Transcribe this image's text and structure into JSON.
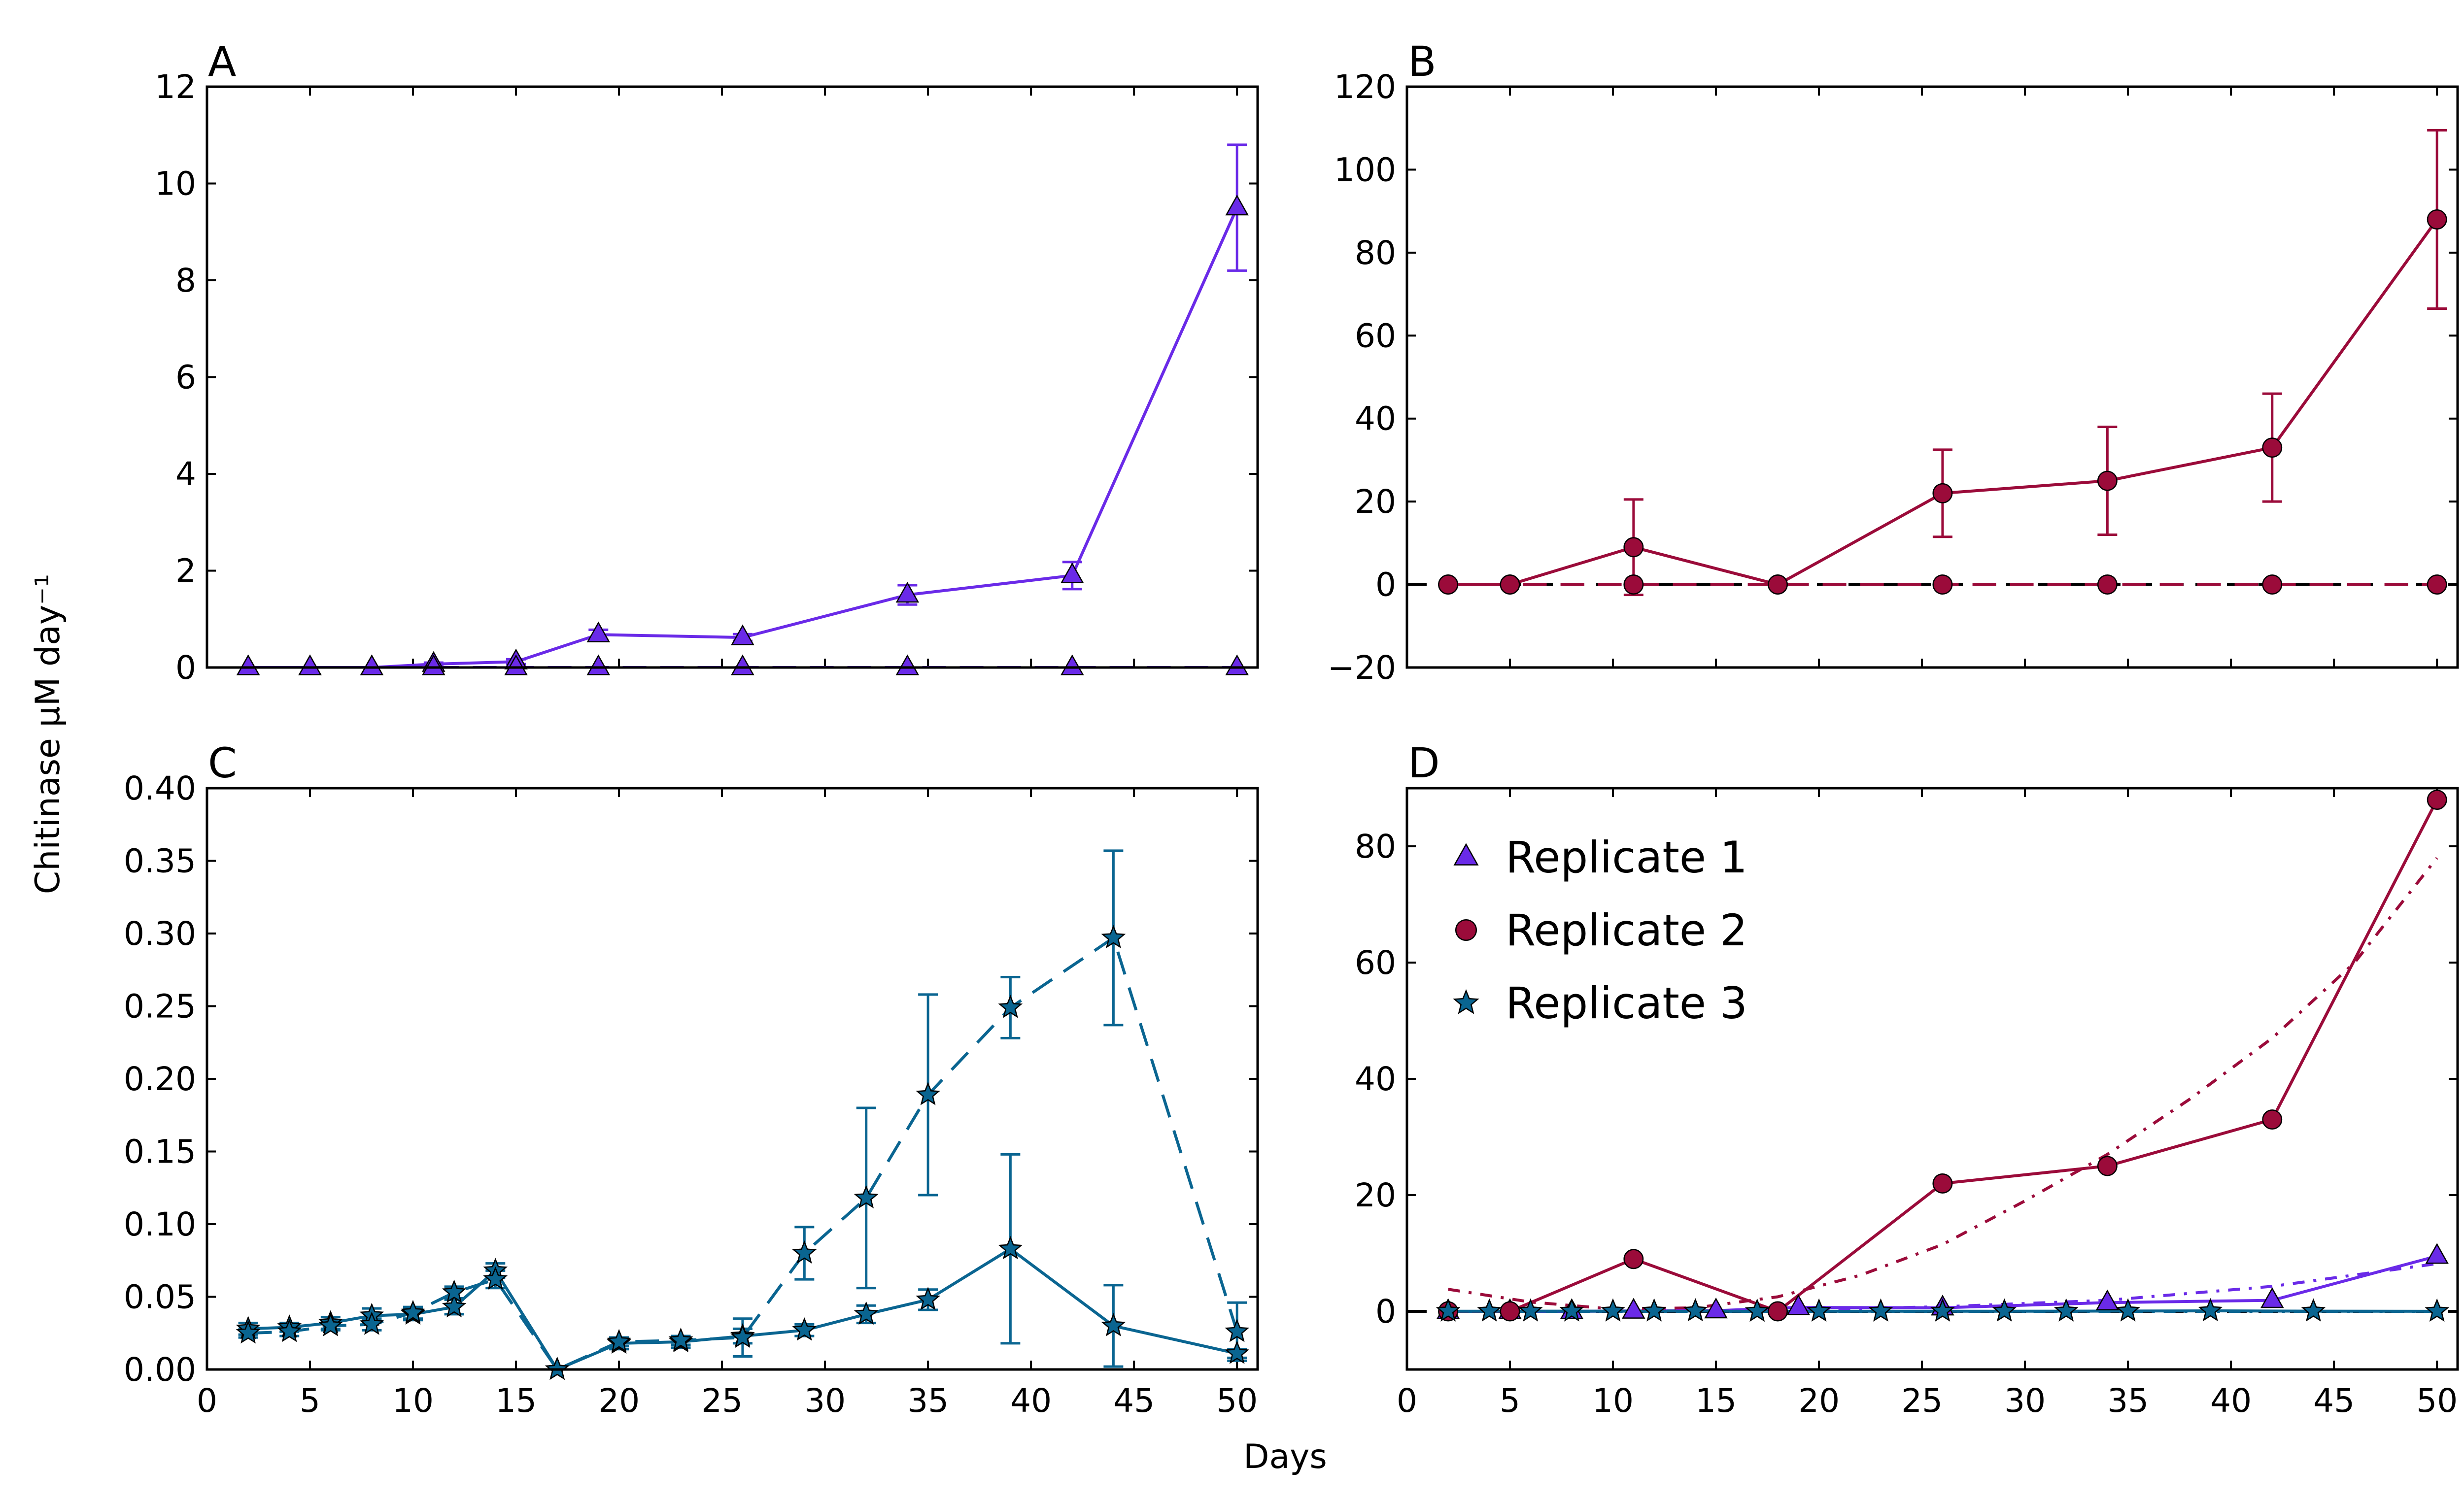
{
  "figure": {
    "xlabel": "Days",
    "ylabel": "Chitinase μM day⁻¹"
  },
  "colors": {
    "replicate_1": "#6a2ae8",
    "replicate_2": "#9b0b3a",
    "replicate_3": "#0a6591",
    "zero_line": "#000000"
  },
  "chart_data": [
    {
      "panel": "A",
      "type": "line",
      "xlim": [
        0,
        51
      ],
      "ylim": [
        0,
        12
      ],
      "yticks": [
        0,
        2,
        4,
        6,
        8,
        10,
        12
      ],
      "yticklabels": [
        "0",
        "2",
        "4",
        "6",
        "8",
        "10",
        "12"
      ],
      "xticks_labeled": false,
      "marker": "triangle",
      "color": "#6a2ae8",
      "series": [
        {
          "style": "solid",
          "x": [
            2,
            5,
            8,
            11,
            15,
            19,
            26,
            34,
            42,
            50
          ],
          "y": [
            0.0,
            0.0,
            0.0,
            0.07,
            0.12,
            0.68,
            0.62,
            1.5,
            1.9,
            9.5
          ],
          "err": [
            0,
            0,
            0,
            0.03,
            0.05,
            0.1,
            0.07,
            0.2,
            0.28,
            1.3
          ]
        },
        {
          "style": "dashed",
          "x": [
            2,
            5,
            8,
            11,
            15,
            19,
            26,
            34,
            42,
            50
          ],
          "y": [
            0,
            0,
            0,
            0,
            0,
            0,
            0,
            0,
            0,
            0
          ],
          "err": [
            0,
            0,
            0,
            0,
            0,
            0,
            0,
            0,
            0,
            0
          ]
        }
      ]
    },
    {
      "panel": "B",
      "type": "line",
      "xlim": [
        0,
        51
      ],
      "ylim": [
        -20,
        120
      ],
      "yticks": [
        -20,
        0,
        20,
        40,
        60,
        80,
        100,
        120
      ],
      "yticklabels": [
        "−20",
        "0",
        "20",
        "40",
        "60",
        "80",
        "100",
        "120"
      ],
      "xticks_labeled": false,
      "marker": "circle",
      "color": "#9b0b3a",
      "zero_line": true,
      "series": [
        {
          "style": "solid",
          "x": [
            2,
            5,
            11,
            18,
            26,
            34,
            42,
            50
          ],
          "y": [
            0,
            0,
            9,
            0,
            22,
            25,
            33,
            88
          ],
          "err": [
            0,
            0,
            11.5,
            0,
            10.5,
            13,
            13,
            21.5
          ]
        },
        {
          "style": "dashed",
          "x": [
            2,
            5,
            11,
            18,
            26,
            34,
            42,
            50
          ],
          "y": [
            0,
            0,
            0,
            0,
            0,
            0,
            0,
            0
          ],
          "err": [
            0,
            0,
            0,
            0,
            0,
            0,
            0,
            0
          ]
        }
      ]
    },
    {
      "panel": "C",
      "type": "line",
      "xlim": [
        0,
        51
      ],
      "ylim": [
        0,
        0.4
      ],
      "yticks": [
        0,
        0.05,
        0.1,
        0.15,
        0.2,
        0.25,
        0.3,
        0.35,
        0.4
      ],
      "yticklabels": [
        "0.00",
        "0.05",
        "0.10",
        "0.15",
        "0.20",
        "0.25",
        "0.30",
        "0.35",
        "0.40"
      ],
      "xticks": [
        0,
        5,
        10,
        15,
        20,
        25,
        30,
        35,
        40,
        45,
        50
      ],
      "xticklabels": [
        "0",
        "5",
        "10",
        "15",
        "20",
        "25",
        "30",
        "35",
        "40",
        "45",
        "50"
      ],
      "marker": "star",
      "color": "#0a6591",
      "series": [
        {
          "style": "solid",
          "x": [
            2,
            4,
            6,
            8,
            10,
            12,
            14,
            17,
            20,
            23,
            26,
            29,
            32,
            35,
            39,
            44,
            50
          ],
          "y": [
            0.028,
            0.029,
            0.032,
            0.037,
            0.038,
            0.043,
            0.068,
            0.0,
            0.018,
            0.019,
            0.023,
            0.027,
            0.038,
            0.048,
            0.083,
            0.03,
            0.011
          ],
          "err": [
            0.004,
            0.003,
            0.004,
            0.005,
            0.004,
            0.005,
            0.005,
            0,
            0.004,
            0.004,
            0.005,
            0.004,
            0.006,
            0.007,
            0.065,
            0.028,
            0.003
          ]
        },
        {
          "style": "dashed",
          "x": [
            2,
            4,
            6,
            8,
            10,
            12,
            14,
            17,
            20,
            23,
            26,
            29,
            32,
            35,
            39,
            44,
            50
          ],
          "y": [
            0.025,
            0.026,
            0.03,
            0.031,
            0.039,
            0.053,
            0.062,
            0.0,
            0.019,
            0.02,
            0.022,
            0.08,
            0.118,
            0.189,
            0.249,
            0.297,
            0.026
          ],
          "err": [
            0.003,
            0.003,
            0.003,
            0.004,
            0.004,
            0.004,
            0.006,
            0,
            0.003,
            0.003,
            0.013,
            0.018,
            0.062,
            0.069,
            0.021,
            0.06,
            0.02
          ]
        }
      ]
    },
    {
      "panel": "D",
      "type": "line",
      "xlim": [
        0,
        51
      ],
      "ylim": [
        -10,
        90
      ],
      "yticks": [
        0,
        20,
        40,
        60,
        80
      ],
      "yticklabels": [
        "0",
        "20",
        "40",
        "60",
        "80"
      ],
      "xticks": [
        0,
        5,
        10,
        15,
        20,
        25,
        30,
        35,
        40,
        45,
        50
      ],
      "xticklabels": [
        "0",
        "5",
        "10",
        "15",
        "20",
        "25",
        "30",
        "35",
        "40",
        "45",
        "50"
      ],
      "zero_line": true,
      "legend": {
        "placement": "top-left",
        "entries": [
          "Replicate 1",
          "Replicate 2",
          "Replicate 3"
        ]
      },
      "series": [
        {
          "name": "Replicate 1",
          "marker": "triangle",
          "color": "#6a2ae8",
          "style": "solid",
          "x": [
            2,
            5,
            8,
            11,
            15,
            19,
            26,
            34,
            42,
            50
          ],
          "y": [
            0,
            0,
            0,
            0.07,
            0.12,
            0.68,
            0.62,
            1.5,
            1.9,
            9.5
          ]
        },
        {
          "name": "Replicate 2",
          "marker": "circle",
          "color": "#9b0b3a",
          "style": "solid",
          "x": [
            2,
            5,
            11,
            18,
            26,
            34,
            42,
            50
          ],
          "y": [
            0,
            0,
            9,
            0,
            22,
            25,
            33,
            88
          ]
        },
        {
          "name": "Replicate 3",
          "marker": "star",
          "color": "#0a6591",
          "style": "solid",
          "x": [
            2,
            4,
            6,
            8,
            10,
            12,
            14,
            17,
            20,
            23,
            26,
            29,
            32,
            35,
            39,
            44,
            50
          ],
          "y": [
            0.028,
            0.029,
            0.032,
            0.037,
            0.038,
            0.043,
            0.068,
            0.0,
            0.018,
            0.019,
            0.023,
            0.027,
            0.038,
            0.048,
            0.083,
            0.03,
            0.011
          ]
        },
        {
          "marker": "none",
          "color": "#9b0b3a",
          "style": "dashdot",
          "x": [
            2,
            6,
            10,
            14,
            18,
            22,
            26,
            30,
            34,
            38,
            42,
            46,
            50
          ],
          "y": [
            3.8,
            1.6,
            0.4,
            0.6,
            2.5,
            6.2,
            11.5,
            19,
            27,
            36.5,
            47,
            60,
            78
          ]
        },
        {
          "marker": "none",
          "color": "#6a2ae8",
          "style": "dashdot",
          "x": [
            2,
            10,
            18,
            26,
            34,
            42,
            50
          ],
          "y": [
            0,
            0,
            0.2,
            0.8,
            1.9,
            4.3,
            8.2
          ]
        },
        {
          "marker": "none",
          "color": "#0a6591",
          "style": "dashdot",
          "x": [
            2,
            50
          ],
          "y": [
            0,
            0
          ]
        }
      ]
    }
  ]
}
